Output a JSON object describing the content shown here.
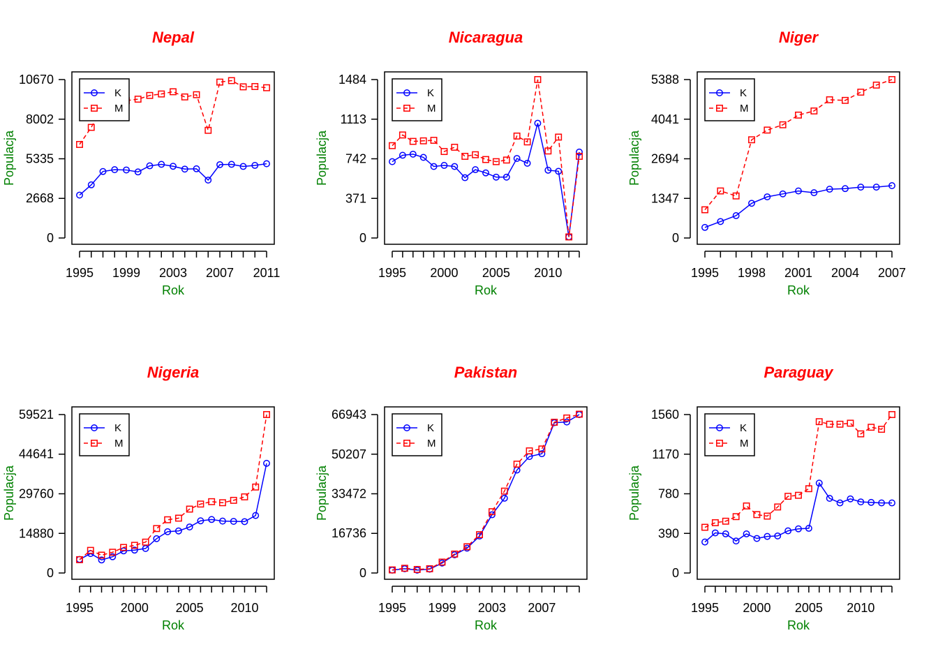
{
  "colors": {
    "title": "#ff0000",
    "axis_title": "#008000",
    "series_K": "#0000ff",
    "series_M": "#ff0000",
    "axes": "#000000"
  },
  "chart_data": [
    {
      "type": "line",
      "title": "Nepal",
      "xlabel": "Rok",
      "ylabel": "Populacja",
      "x": [
        1995,
        1996,
        1997,
        1998,
        1999,
        2000,
        2001,
        2002,
        2003,
        2004,
        2005,
        2006,
        2007,
        2008,
        2009,
        2010,
        2011
      ],
      "xticks": [
        1995,
        1999,
        2003,
        2007,
        2011
      ],
      "xlim": [
        1995,
        2011
      ],
      "yticks": [
        0,
        2668,
        5335,
        8002,
        10670
      ],
      "ylim": [
        0,
        10670
      ],
      "legend": "top-left",
      "series": [
        {
          "name": "K",
          "style": "solid-circle",
          "values": [
            2890,
            3580,
            4480,
            4600,
            4580,
            4450,
            4860,
            4960,
            4830,
            4640,
            4660,
            3900,
            4940,
            4960,
            4820,
            4890,
            5000
          ]
        },
        {
          "name": "M",
          "style": "dashed-square",
          "values": [
            6300,
            7450,
            8900,
            9200,
            9250,
            9350,
            9600,
            9700,
            9850,
            9500,
            9650,
            7250,
            10500,
            10600,
            10180,
            10200,
            10120
          ]
        }
      ]
    },
    {
      "type": "line",
      "title": "Nicaragua",
      "xlabel": "Rok",
      "ylabel": "Populacja",
      "x": [
        1995,
        1996,
        1997,
        1998,
        1999,
        2000,
        2001,
        2002,
        2003,
        2004,
        2005,
        2006,
        2007,
        2008,
        2009,
        2010,
        2011,
        2012,
        2013
      ],
      "xticks": [
        1995,
        2000,
        2005,
        2010
      ],
      "xlim": [
        1995,
        2013
      ],
      "yticks": [
        0,
        371,
        742,
        1113,
        1484
      ],
      "ylim": [
        0,
        1484
      ],
      "legend": "top-left",
      "series": [
        {
          "name": "K",
          "style": "solid-circle",
          "values": [
            715,
            775,
            785,
            755,
            670,
            680,
            670,
            565,
            640,
            610,
            570,
            570,
            745,
            700,
            1075,
            635,
            625,
            10,
            805
          ]
        },
        {
          "name": "M",
          "style": "dashed-square",
          "values": [
            865,
            965,
            905,
            910,
            915,
            810,
            850,
            765,
            780,
            735,
            715,
            730,
            955,
            900,
            1484,
            815,
            945,
            10,
            765
          ]
        }
      ]
    },
    {
      "type": "line",
      "title": "Niger",
      "xlabel": "Rok",
      "ylabel": "Populacja",
      "x": [
        1995,
        1996,
        1997,
        1998,
        1999,
        2000,
        2001,
        2002,
        2003,
        2004,
        2005,
        2006,
        2007
      ],
      "xticks": [
        1995,
        1998,
        2001,
        2004,
        2007
      ],
      "xlim": [
        1995,
        2007
      ],
      "yticks": [
        0,
        1347,
        2694,
        4041,
        5388
      ],
      "ylim": [
        0,
        5388
      ],
      "legend": "top-left",
      "series": [
        {
          "name": "K",
          "style": "solid-circle",
          "values": [
            360,
            560,
            760,
            1180,
            1400,
            1500,
            1600,
            1540,
            1660,
            1680,
            1730,
            1730,
            1780
          ]
        },
        {
          "name": "M",
          "style": "dashed-square",
          "values": [
            960,
            1600,
            1430,
            3340,
            3670,
            3850,
            4180,
            4320,
            4700,
            4680,
            4960,
            5200,
            5388
          ]
        }
      ]
    },
    {
      "type": "line",
      "title": "Nigeria",
      "xlabel": "Rok",
      "ylabel": "Populacja",
      "x": [
        1995,
        1996,
        1997,
        1998,
        1999,
        2000,
        2001,
        2002,
        2003,
        2004,
        2005,
        2006,
        2007,
        2008,
        2009,
        2010,
        2011,
        2012
      ],
      "xticks": [
        1995,
        2000,
        2005,
        2010
      ],
      "xlim": [
        1995,
        2012
      ],
      "yticks": [
        0,
        14880,
        29760,
        44641,
        59521
      ],
      "ylim": [
        0,
        59521
      ],
      "legend": "top-left",
      "series": [
        {
          "name": "K",
          "style": "solid-circle",
          "values": [
            5100,
            7300,
            4900,
            6100,
            8300,
            8600,
            9200,
            12900,
            15500,
            15800,
            17300,
            19600,
            20100,
            19500,
            19400,
            19300,
            21600,
            41200
          ]
        },
        {
          "name": "M",
          "style": "dashed-square",
          "values": [
            5000,
            8500,
            6700,
            7800,
            9600,
            10400,
            11600,
            16700,
            20000,
            20600,
            24000,
            25900,
            26800,
            26400,
            27300,
            28600,
            32300,
            59521
          ]
        }
      ]
    },
    {
      "type": "line",
      "title": "Pakistan",
      "xlabel": "Rok",
      "ylabel": "Populacja",
      "x": [
        1995,
        1996,
        1997,
        1998,
        1999,
        2000,
        2001,
        2002,
        2003,
        2004,
        2005,
        2006,
        2007,
        2008,
        2009,
        2010
      ],
      "xticks": [
        1995,
        1999,
        2003,
        2007
      ],
      "xlim": [
        1995,
        2010
      ],
      "yticks": [
        0,
        16736,
        33472,
        50207,
        66943
      ],
      "ylim": [
        0,
        66943
      ],
      "legend": "top-left",
      "series": [
        {
          "name": "K",
          "style": "solid-circle",
          "values": [
            1200,
            1800,
            1200,
            1600,
            4200,
            7700,
            10500,
            15600,
            24600,
            31600,
            43500,
            49200,
            50400,
            63500,
            63800,
            66943
          ]
        },
        {
          "name": "M",
          "style": "dashed-square",
          "values": [
            1300,
            2000,
            1500,
            1800,
            4600,
            8000,
            11100,
            16200,
            25900,
            34600,
            46000,
            51600,
            52400,
            63700,
            65500,
            67100
          ]
        }
      ]
    },
    {
      "type": "line",
      "title": "Paraguay",
      "xlabel": "Rok",
      "ylabel": "Populacja",
      "x": [
        1995,
        1996,
        1997,
        1998,
        1999,
        2000,
        2001,
        2002,
        2003,
        2004,
        2005,
        2006,
        2007,
        2008,
        2009,
        2010,
        2011,
        2012,
        2013
      ],
      "xticks": [
        1995,
        2000,
        2005,
        2010
      ],
      "xlim": [
        1995,
        2013
      ],
      "yticks": [
        0,
        390,
        780,
        1170,
        1560
      ],
      "ylim": [
        0,
        1560
      ],
      "legend": "top-left",
      "series": [
        {
          "name": "K",
          "style": "solid-circle",
          "values": [
            305,
            395,
            385,
            315,
            385,
            340,
            360,
            365,
            415,
            435,
            440,
            885,
            735,
            690,
            730,
            700,
            695,
            690,
            690
          ]
        },
        {
          "name": "M",
          "style": "dashed-square",
          "values": [
            450,
            495,
            510,
            555,
            660,
            575,
            560,
            650,
            755,
            765,
            830,
            1490,
            1465,
            1465,
            1475,
            1370,
            1435,
            1415,
            1560
          ]
        }
      ]
    }
  ]
}
